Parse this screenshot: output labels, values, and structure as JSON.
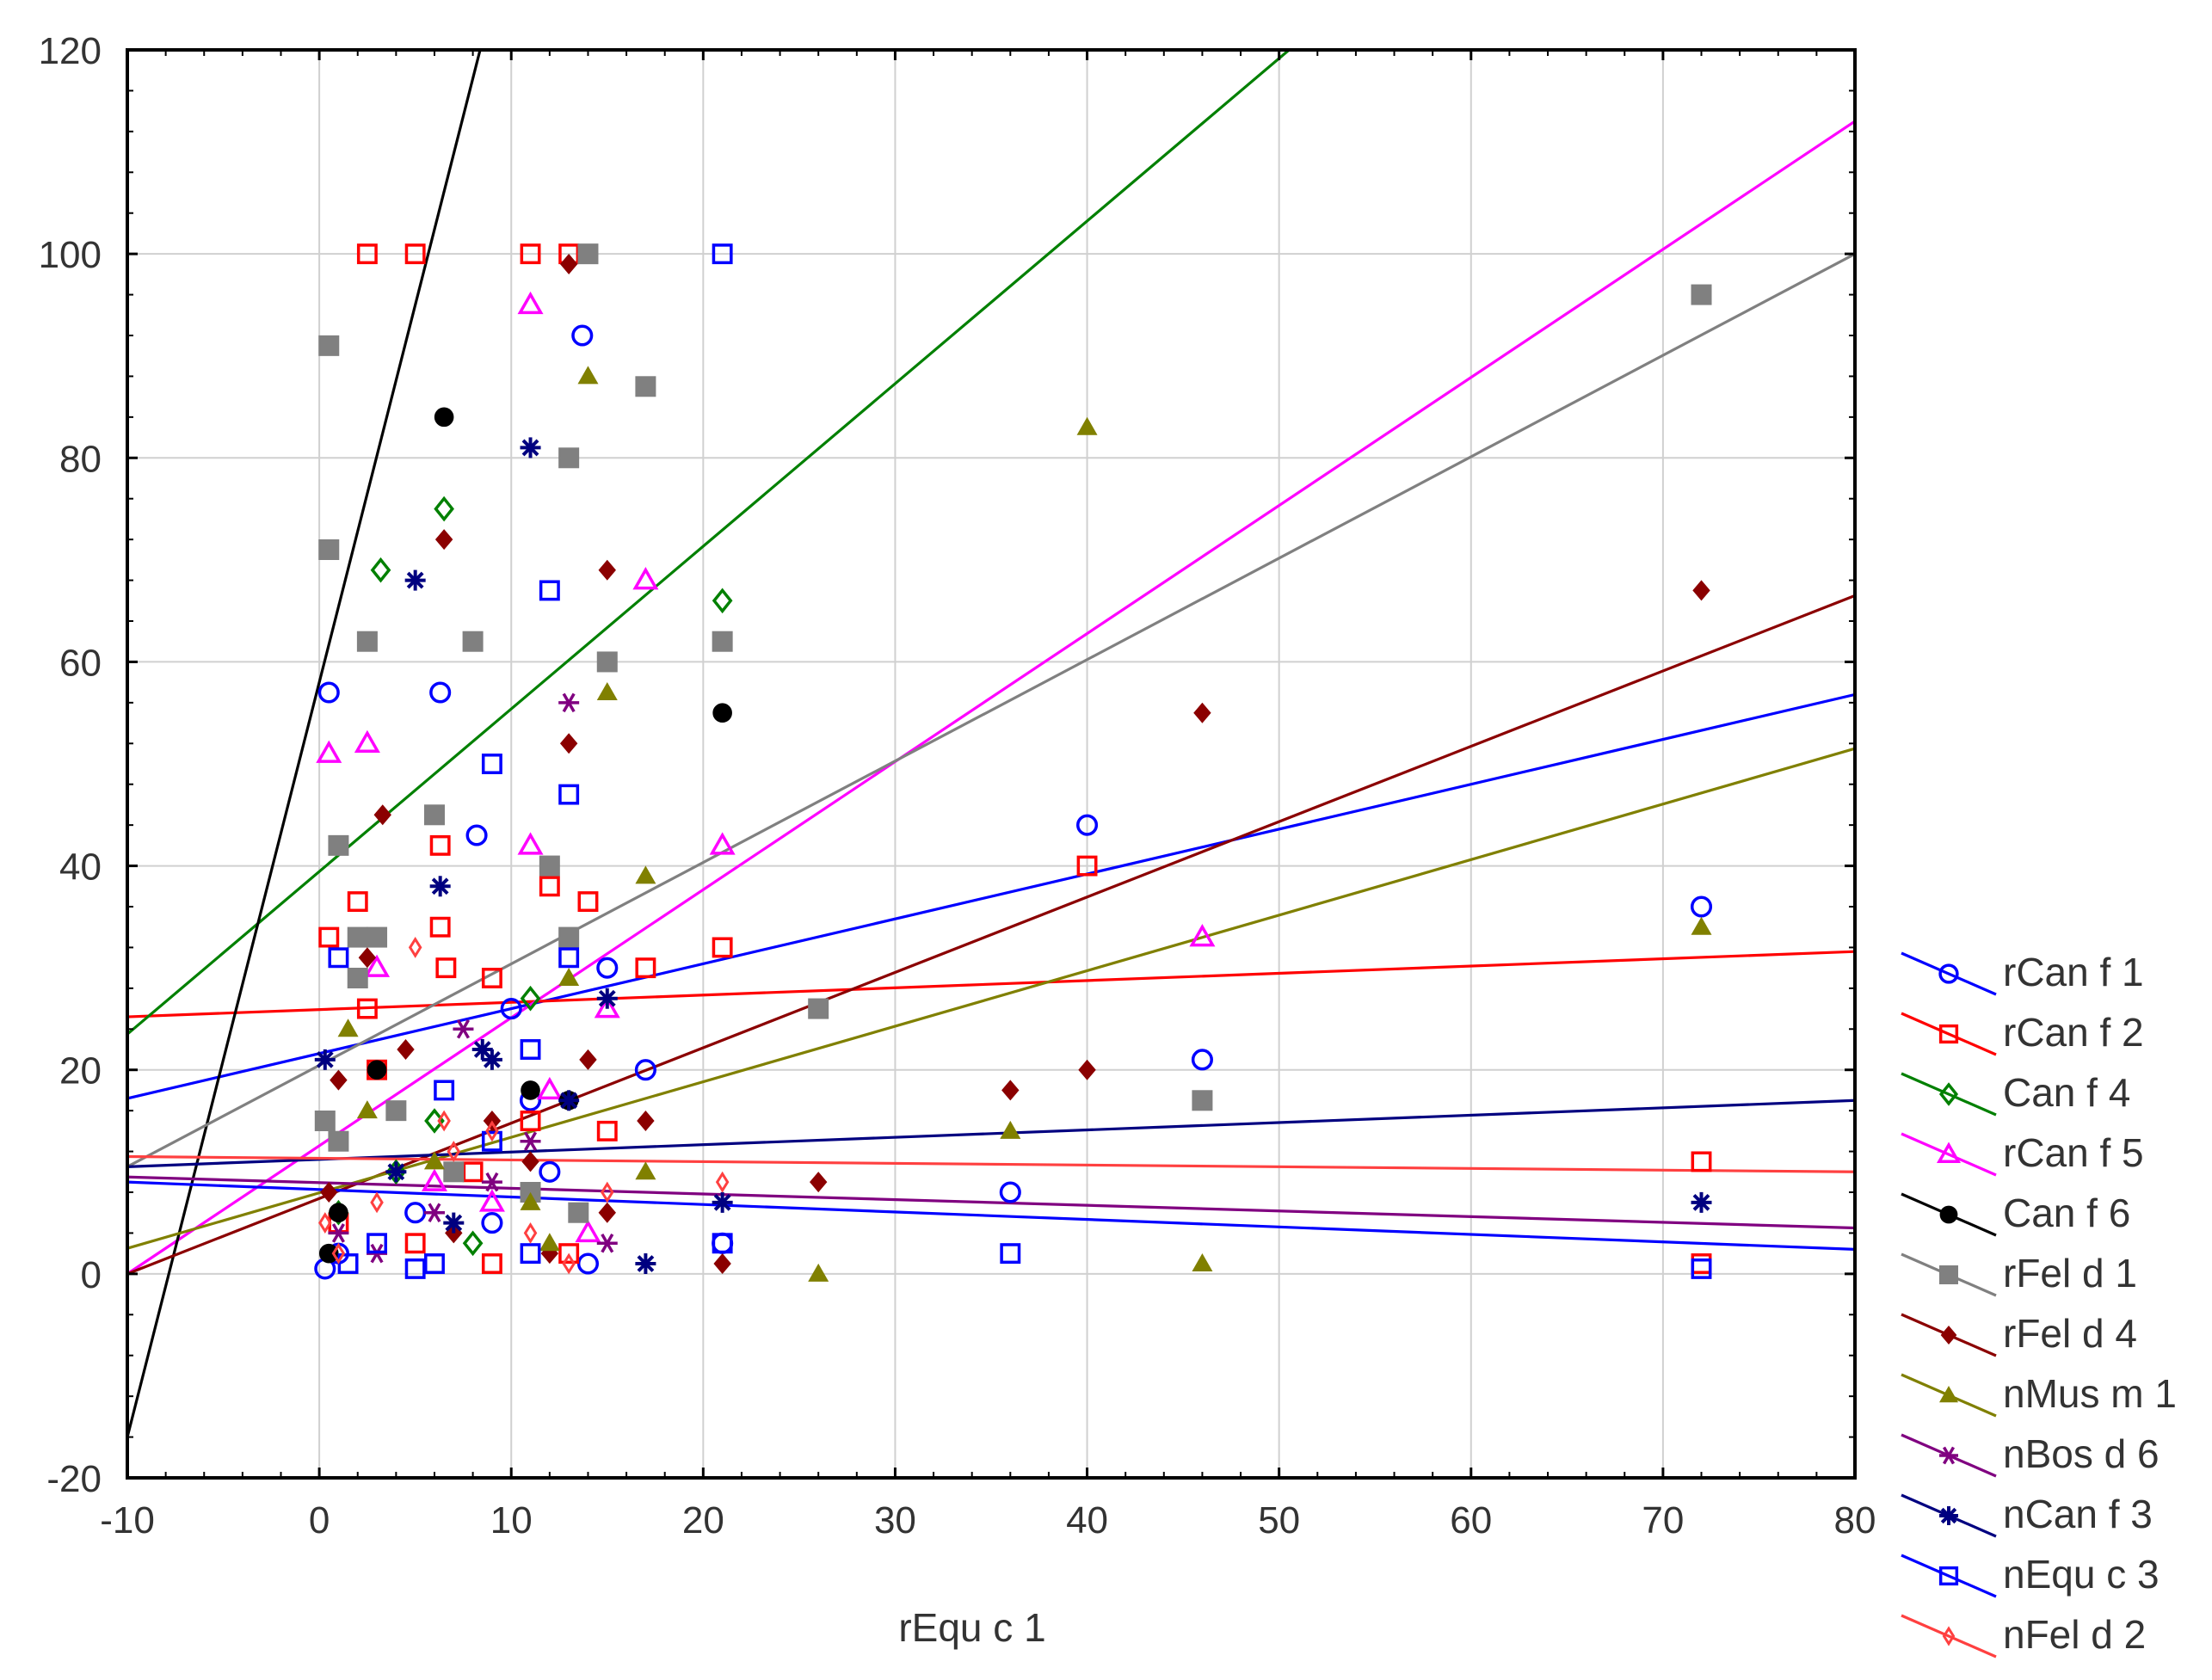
{
  "chart_data": {
    "type": "scatter",
    "title": "",
    "xlabel": "rEqu c 1",
    "ylabel": "",
    "xlim": [
      -10,
      80
    ],
    "ylim": [
      -20,
      120
    ],
    "xticks": [
      -10,
      0,
      10,
      20,
      30,
      40,
      50,
      60,
      70,
      80
    ],
    "yticks": [
      -20,
      0,
      20,
      40,
      60,
      80,
      100,
      120
    ],
    "xtick_labels": [
      "-10",
      "0",
      "10",
      "20",
      "30",
      "40",
      "50",
      "60",
      "70",
      "80"
    ],
    "ytick_labels": [
      "-20",
      "0",
      "20",
      "40",
      "60",
      "80",
      "100",
      "120"
    ],
    "grid": true,
    "legend_position": "right-bottom",
    "series": [
      {
        "name": "rCan f 1",
        "color": "#0000ff",
        "marker": "circle-open",
        "fit": [
          -10,
          17.2,
          80,
          56.8
        ],
        "x": [
          0.5,
          6.3,
          13.7,
          8.2,
          36,
          40,
          46,
          72,
          15,
          17,
          21,
          10,
          11,
          14,
          1,
          5,
          9,
          12,
          0.3
        ],
        "y": [
          57,
          57,
          92,
          43,
          8,
          44,
          21,
          36,
          30,
          20,
          3,
          26,
          17,
          1,
          2,
          6,
          5,
          10,
          0.5
        ]
      },
      {
        "name": "rCan f 2",
        "color": "#ff0000",
        "marker": "square-open",
        "fit": [
          -10,
          25.2,
          80,
          31.6
        ],
        "x": [
          2.5,
          5,
          11,
          13,
          0.5,
          2,
          2.5,
          6.3,
          6.6,
          6.3,
          9,
          12,
          14,
          15,
          17,
          21,
          40,
          72,
          72,
          11,
          3,
          1,
          5,
          8,
          9,
          13
        ],
        "y": [
          100,
          100,
          100,
          100,
          33,
          36.5,
          26,
          42,
          30,
          34,
          29,
          38,
          36.5,
          14,
          30,
          32,
          40,
          11,
          1,
          15,
          20,
          5,
          3,
          10,
          1,
          2
        ]
      },
      {
        "name": "Can f 4",
        "color": "#008000",
        "marker": "diamond-open",
        "fit": [
          -10,
          23.5,
          80,
          167
        ],
        "x": [
          3.2,
          6.5,
          21,
          11,
          4,
          6,
          1,
          8
        ],
        "y": [
          69,
          75,
          66,
          27,
          10,
          15,
          6,
          3
        ]
      },
      {
        "name": "rCan f 5",
        "color": "#ff00ff",
        "marker": "triangle-open",
        "fit": [
          -10,
          0,
          80,
          113
        ],
        "x": [
          11,
          0.5,
          2.5,
          17,
          21,
          46,
          11,
          3,
          15,
          12,
          6,
          14,
          9
        ],
        "y": [
          95,
          51,
          52,
          68,
          42,
          33,
          42,
          30,
          26,
          18,
          9,
          4,
          7
        ]
      },
      {
        "name": "Can f 6",
        "color": "#000000",
        "marker": "circle-filled",
        "fit": [
          -10,
          -16,
          80,
          650
        ],
        "x": [
          6.5,
          21,
          11,
          3,
          1,
          0.5,
          13
        ],
        "y": [
          84,
          55,
          18,
          20,
          6,
          2,
          17
        ]
      },
      {
        "name": "rFel d 1",
        "color": "#808080",
        "marker": "square-filled",
        "fit": [
          -10,
          10.5,
          80,
          100
        ],
        "x": [
          0.5,
          0.5,
          13,
          14,
          17,
          2.5,
          8,
          15,
          1,
          6,
          12,
          2,
          26,
          46,
          72,
          13,
          3,
          21,
          4,
          0.3,
          1,
          2,
          7,
          13.5,
          11
        ],
        "y": [
          91,
          71,
          80,
          100,
          87,
          62,
          62,
          60,
          42,
          45,
          40,
          33,
          26,
          17,
          96,
          33,
          33,
          62,
          16,
          15,
          13,
          29,
          10,
          6,
          8
        ]
      },
      {
        "name": "rFel d 4",
        "color": "#8b0000",
        "marker": "diamond-filled",
        "fit": [
          -10,
          0,
          80,
          66.5
        ],
        "x": [
          13,
          6.5,
          15,
          13,
          46,
          72,
          3.3,
          14,
          36,
          40,
          26,
          21,
          1,
          2.5,
          17,
          4.5,
          9,
          11,
          0.5,
          7,
          12,
          15
        ],
        "y": [
          99,
          72,
          69,
          52,
          55,
          67,
          45,
          21,
          18,
          20,
          9,
          1,
          19,
          31,
          15,
          22,
          15,
          11,
          8,
          4,
          2,
          6
        ]
      },
      {
        "name": "nMus m 1",
        "color": "#808000",
        "marker": "triangle-filled",
        "fit": [
          -10,
          2.5,
          80,
          51.5
        ],
        "x": [
          14,
          40,
          15,
          17,
          72,
          36,
          46,
          26,
          1.5,
          17,
          11,
          6,
          2.5,
          12,
          13
        ],
        "y": [
          88,
          83,
          57,
          39,
          34,
          14,
          1,
          0,
          24,
          10,
          7,
          11,
          16,
          3,
          29
        ]
      },
      {
        "name": "nBos d 6",
        "color": "#800080",
        "marker": "star",
        "fit": [
          -10,
          9.5,
          80,
          4.5
        ],
        "x": [
          13,
          7.5,
          11,
          9,
          15,
          6,
          3,
          1
        ],
        "y": [
          56,
          24,
          13,
          9,
          3,
          6,
          2,
          4
        ]
      },
      {
        "name": "nCan f 3",
        "color": "#000080",
        "marker": "asterisk",
        "fit": [
          -10,
          10.5,
          80,
          17
        ],
        "x": [
          11,
          5,
          6.3,
          8.5,
          9,
          15,
          13,
          72,
          21,
          17,
          0.3,
          4,
          7
        ],
        "y": [
          81,
          68,
          38,
          22,
          21,
          27,
          17,
          7,
          7,
          1,
          21,
          10,
          5
        ]
      },
      {
        "name": "nEqu c 3",
        "color": "#0000ff",
        "marker": "square-open",
        "fit": [
          -10,
          9,
          80,
          2.4
        ],
        "x": [
          21,
          12,
          9,
          13,
          1,
          6.5,
          11,
          36,
          72,
          21,
          13,
          9,
          6,
          3,
          11,
          1.5,
          5
        ],
        "y": [
          100,
          67,
          50,
          47,
          31,
          18,
          22,
          2,
          0.5,
          3,
          31,
          13,
          1,
          3,
          2,
          1,
          0.5
        ]
      },
      {
        "name": "nFel d 2",
        "color": "#ff4040",
        "marker": "diamond-open-small",
        "fit": [
          -10,
          11.5,
          80,
          10
        ],
        "x": [
          5,
          6.5,
          15,
          21,
          13,
          9,
          3,
          11,
          1,
          0.3,
          7
        ],
        "y": [
          32,
          15,
          8,
          9,
          1,
          14,
          7,
          4,
          2,
          5,
          12
        ]
      }
    ]
  }
}
